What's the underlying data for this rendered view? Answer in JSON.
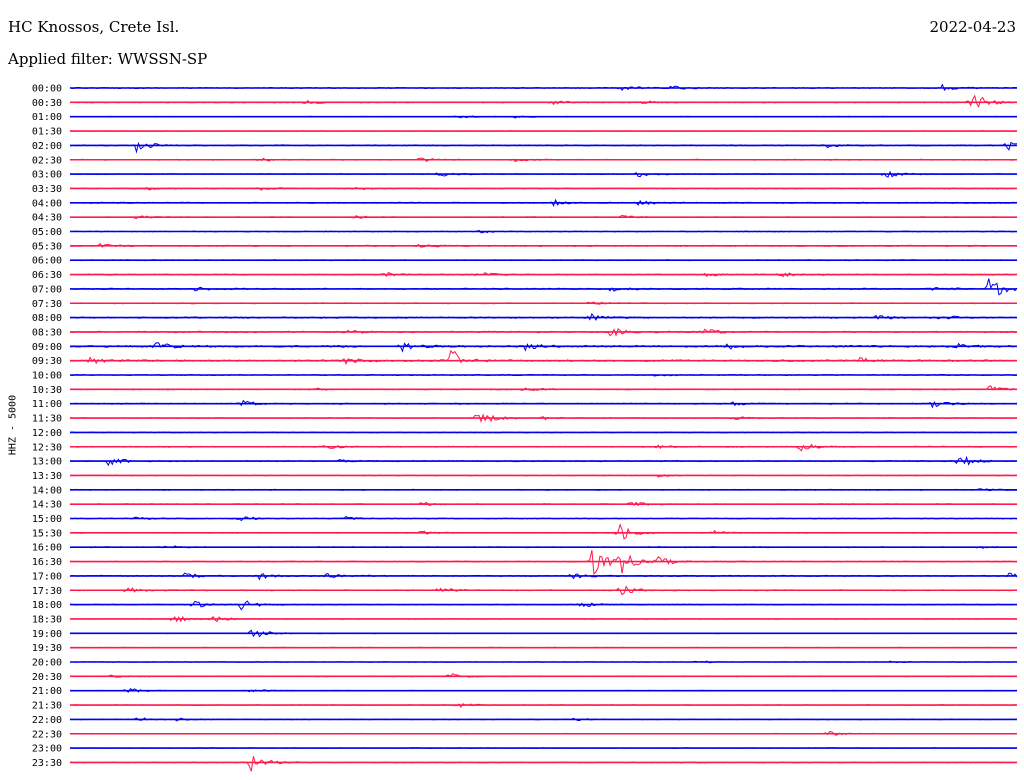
{
  "header": {
    "station": "HC Knossos, Crete Isl.",
    "date": "2022-04-23",
    "filter": "Applied filter: WWSSN-SP"
  },
  "colors": {
    "blue": "#0000ee",
    "red": "#ff1a4d"
  },
  "chart_data": {
    "type": "line",
    "title": "HC Knossos, Crete Isl.",
    "subtitle": "Applied filter: WWSSN-SP",
    "date": "2022-04-23",
    "ylabel": "HHZ - 5000",
    "trace_colors": [
      "blue",
      "red"
    ],
    "rows": [
      {
        "label": "00:00",
        "color": "blue",
        "noise": 0.5,
        "events": [
          {
            "t": 0.58,
            "a": 0.6
          },
          {
            "t": 0.63,
            "a": 0.5
          },
          {
            "t": 0.92,
            "a": 0.6
          }
        ]
      },
      {
        "label": "00:30",
        "color": "red",
        "noise": 0.4,
        "events": [
          {
            "t": 0.25,
            "a": 0.3
          },
          {
            "t": 0.51,
            "a": 0.4
          },
          {
            "t": 0.6,
            "a": 0.4
          },
          {
            "t": 0.95,
            "a": 2.5
          }
        ]
      },
      {
        "label": "01:00",
        "color": "blue",
        "noise": 0.3,
        "events": [
          {
            "t": 0.41,
            "a": 0.3
          },
          {
            "t": 0.47,
            "a": 0.3
          }
        ]
      },
      {
        "label": "01:30",
        "color": "red",
        "noise": 0.2,
        "events": []
      },
      {
        "label": "02:00",
        "color": "blue",
        "noise": 0.5,
        "events": [
          {
            "t": 0.07,
            "a": 1.2
          },
          {
            "t": 0.8,
            "a": 0.4
          },
          {
            "t": 0.99,
            "a": 1.0
          }
        ]
      },
      {
        "label": "02:30",
        "color": "red",
        "noise": 0.4,
        "events": [
          {
            "t": 0.2,
            "a": 0.3
          },
          {
            "t": 0.37,
            "a": 0.8
          },
          {
            "t": 0.47,
            "a": 0.3
          }
        ]
      },
      {
        "label": "03:00",
        "color": "blue",
        "noise": 0.4,
        "events": [
          {
            "t": 0.39,
            "a": 0.4
          },
          {
            "t": 0.6,
            "a": 0.5
          },
          {
            "t": 0.86,
            "a": 0.7
          }
        ]
      },
      {
        "label": "03:30",
        "color": "red",
        "noise": 0.4,
        "events": [
          {
            "t": 0.08,
            "a": 0.3
          },
          {
            "t": 0.2,
            "a": 0.3
          },
          {
            "t": 0.3,
            "a": 0.3
          }
        ]
      },
      {
        "label": "04:00",
        "color": "blue",
        "noise": 0.5,
        "events": [
          {
            "t": 0.51,
            "a": 0.5
          },
          {
            "t": 0.6,
            "a": 0.5
          }
        ]
      },
      {
        "label": "04:30",
        "color": "red",
        "noise": 0.3,
        "events": [
          {
            "t": 0.07,
            "a": 0.4
          },
          {
            "t": 0.3,
            "a": 0.3
          },
          {
            "t": 0.58,
            "a": 0.4
          }
        ]
      },
      {
        "label": "05:00",
        "color": "blue",
        "noise": 0.4,
        "events": [
          {
            "t": 0.43,
            "a": 0.3
          }
        ]
      },
      {
        "label": "05:30",
        "color": "red",
        "noise": 0.5,
        "events": [
          {
            "t": 0.03,
            "a": 0.6
          },
          {
            "t": 0.37,
            "a": 0.5
          }
        ]
      },
      {
        "label": "06:00",
        "color": "blue",
        "noise": 0.4,
        "events": []
      },
      {
        "label": "06:30",
        "color": "red",
        "noise": 0.5,
        "events": [
          {
            "t": 0.33,
            "a": 0.5
          },
          {
            "t": 0.43,
            "a": 0.5
          },
          {
            "t": 0.67,
            "a": 0.4
          },
          {
            "t": 0.75,
            "a": 0.4
          }
        ]
      },
      {
        "label": "07:00",
        "color": "blue",
        "noise": 0.6,
        "events": [
          {
            "t": 0.13,
            "a": 0.3
          },
          {
            "t": 0.57,
            "a": 0.4
          },
          {
            "t": 0.91,
            "a": 0.5
          },
          {
            "t": 0.97,
            "a": 2.2
          }
        ]
      },
      {
        "label": "07:30",
        "color": "red",
        "noise": 0.4,
        "events": [
          {
            "t": 0.55,
            "a": 0.3
          }
        ]
      },
      {
        "label": "08:00",
        "color": "blue",
        "noise": 0.6,
        "events": [
          {
            "t": 0.55,
            "a": 0.8
          },
          {
            "t": 0.85,
            "a": 0.5
          },
          {
            "t": 0.92,
            "a": 0.4
          }
        ]
      },
      {
        "label": "08:30",
        "color": "red",
        "noise": 0.6,
        "events": [
          {
            "t": 0.29,
            "a": 0.5
          },
          {
            "t": 0.57,
            "a": 0.8
          },
          {
            "t": 0.67,
            "a": 0.5
          }
        ]
      },
      {
        "label": "09:00",
        "color": "blue",
        "noise": 0.8,
        "events": [
          {
            "t": 0.09,
            "a": 0.8
          },
          {
            "t": 0.35,
            "a": 0.8
          },
          {
            "t": 0.48,
            "a": 0.6
          },
          {
            "t": 0.69,
            "a": 0.6
          },
          {
            "t": 0.93,
            "a": 0.6
          }
        ]
      },
      {
        "label": "09:30",
        "color": "red",
        "noise": 0.8,
        "events": [
          {
            "t": 0.02,
            "a": 0.6
          },
          {
            "t": 0.29,
            "a": 0.6
          },
          {
            "t": 0.4,
            "a": 2.5
          },
          {
            "t": 0.83,
            "a": 0.6
          }
        ]
      },
      {
        "label": "10:00",
        "color": "blue",
        "noise": 0.5,
        "events": [
          {
            "t": 0.62,
            "a": 0.3
          }
        ]
      },
      {
        "label": "10:30",
        "color": "red",
        "noise": 0.4,
        "events": [
          {
            "t": 0.26,
            "a": 0.3
          },
          {
            "t": 0.48,
            "a": 0.5
          },
          {
            "t": 0.97,
            "a": 0.6
          }
        ]
      },
      {
        "label": "11:00",
        "color": "blue",
        "noise": 0.5,
        "events": [
          {
            "t": 0.18,
            "a": 0.6
          },
          {
            "t": 0.7,
            "a": 0.3
          },
          {
            "t": 0.91,
            "a": 0.6
          }
        ]
      },
      {
        "label": "11:30",
        "color": "red",
        "noise": 0.4,
        "events": [
          {
            "t": 0.43,
            "a": 1.5
          },
          {
            "t": 0.5,
            "a": 0.3
          },
          {
            "t": 0.7,
            "a": 0.3
          }
        ]
      },
      {
        "label": "12:00",
        "color": "blue",
        "noise": 0.4,
        "events": []
      },
      {
        "label": "12:30",
        "color": "red",
        "noise": 0.4,
        "events": [
          {
            "t": 0.27,
            "a": 0.4
          },
          {
            "t": 0.62,
            "a": 0.4
          },
          {
            "t": 0.77,
            "a": 0.9
          }
        ]
      },
      {
        "label": "13:00",
        "color": "blue",
        "noise": 0.5,
        "events": [
          {
            "t": 0.04,
            "a": 0.8
          },
          {
            "t": 0.28,
            "a": 0.3
          },
          {
            "t": 0.94,
            "a": 1.2
          }
        ]
      },
      {
        "label": "13:30",
        "color": "red",
        "noise": 0.3,
        "events": [
          {
            "t": 0.62,
            "a": 0.3
          }
        ]
      },
      {
        "label": "14:00",
        "color": "blue",
        "noise": 0.4,
        "events": [
          {
            "t": 0.96,
            "a": 0.3
          }
        ]
      },
      {
        "label": "14:30",
        "color": "red",
        "noise": 0.4,
        "events": [
          {
            "t": 0.37,
            "a": 0.4
          },
          {
            "t": 0.59,
            "a": 0.6
          }
        ]
      },
      {
        "label": "15:00",
        "color": "blue",
        "noise": 0.4,
        "events": [
          {
            "t": 0.07,
            "a": 0.4
          },
          {
            "t": 0.18,
            "a": 0.4
          },
          {
            "t": 0.29,
            "a": 0.3
          }
        ]
      },
      {
        "label": "15:30",
        "color": "red",
        "noise": 0.3,
        "events": [
          {
            "t": 0.37,
            "a": 0.3
          },
          {
            "t": 0.58,
            "a": 1.5
          },
          {
            "t": 0.68,
            "a": 0.4
          }
        ]
      },
      {
        "label": "16:00",
        "color": "blue",
        "noise": 0.4,
        "events": [
          {
            "t": 0.1,
            "a": 0.4
          },
          {
            "t": 0.96,
            "a": 0.3
          }
        ]
      },
      {
        "label": "16:30",
        "color": "red",
        "noise": 0.4,
        "events": [
          {
            "t": 0.55,
            "a": 3.0
          },
          {
            "t": 0.58,
            "a": 2.5
          },
          {
            "t": 0.62,
            "a": 1.0
          }
        ]
      },
      {
        "label": "17:00",
        "color": "blue",
        "noise": 0.5,
        "events": [
          {
            "t": 0.12,
            "a": 0.6
          },
          {
            "t": 0.2,
            "a": 0.5
          },
          {
            "t": 0.27,
            "a": 0.6
          },
          {
            "t": 0.53,
            "a": 0.6
          },
          {
            "t": 0.99,
            "a": 0.6
          }
        ]
      },
      {
        "label": "17:30",
        "color": "red",
        "noise": 0.4,
        "events": [
          {
            "t": 0.06,
            "a": 0.6
          },
          {
            "t": 0.39,
            "a": 0.5
          },
          {
            "t": 0.58,
            "a": 1.0
          }
        ]
      },
      {
        "label": "18:00",
        "color": "blue",
        "noise": 0.4,
        "events": [
          {
            "t": 0.13,
            "a": 0.6
          },
          {
            "t": 0.18,
            "a": 1.0
          },
          {
            "t": 0.54,
            "a": 0.5
          }
        ]
      },
      {
        "label": "18:30",
        "color": "red",
        "noise": 0.3,
        "events": [
          {
            "t": 0.11,
            "a": 0.6
          },
          {
            "t": 0.15,
            "a": 0.6
          }
        ]
      },
      {
        "label": "19:00",
        "color": "blue",
        "noise": 0.3,
        "events": [
          {
            "t": 0.19,
            "a": 1.2
          }
        ]
      },
      {
        "label": "19:30",
        "color": "red",
        "noise": 0.3,
        "events": []
      },
      {
        "label": "20:00",
        "color": "blue",
        "noise": 0.3,
        "events": [
          {
            "t": 0.66,
            "a": 0.3
          },
          {
            "t": 0.86,
            "a": 0.3
          }
        ]
      },
      {
        "label": "20:30",
        "color": "red",
        "noise": 0.3,
        "events": [
          {
            "t": 0.04,
            "a": 0.3
          },
          {
            "t": 0.4,
            "a": 0.6
          }
        ]
      },
      {
        "label": "21:00",
        "color": "blue",
        "noise": 0.3,
        "events": [
          {
            "t": 0.06,
            "a": 0.5
          },
          {
            "t": 0.19,
            "a": 0.4
          }
        ]
      },
      {
        "label": "21:30",
        "color": "red",
        "noise": 0.3,
        "events": [
          {
            "t": 0.41,
            "a": 0.4
          }
        ]
      },
      {
        "label": "22:00",
        "color": "blue",
        "noise": 0.3,
        "events": [
          {
            "t": 0.07,
            "a": 0.4
          },
          {
            "t": 0.11,
            "a": 0.3
          },
          {
            "t": 0.53,
            "a": 0.3
          }
        ]
      },
      {
        "label": "22:30",
        "color": "red",
        "noise": 0.3,
        "events": [
          {
            "t": 0.8,
            "a": 0.4
          }
        ]
      },
      {
        "label": "23:00",
        "color": "blue",
        "noise": 0.3,
        "events": []
      },
      {
        "label": "23:30",
        "color": "red",
        "noise": 0.4,
        "events": [
          {
            "t": 0.19,
            "a": 2.0
          }
        ]
      }
    ]
  }
}
